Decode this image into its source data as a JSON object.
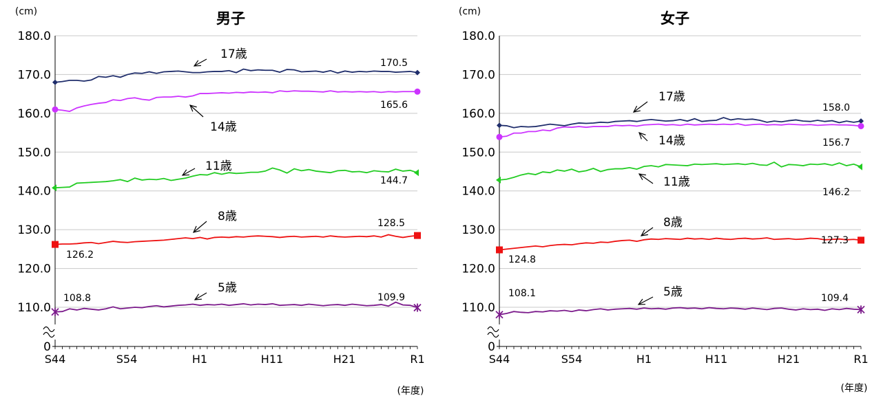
{
  "chart_data": [
    {
      "type": "line",
      "title": "男子",
      "y_unit": "(cm)",
      "x_unit": "(年度)",
      "y_ticks": [
        "180.0",
        "170.0",
        "160.0",
        "150.0",
        "140.0",
        "130.0",
        "120.0",
        "110.0",
        "0"
      ],
      "ylim": [
        105,
        180
      ],
      "y_break": true,
      "x_ticks": [
        "S44",
        "S54",
        "H1",
        "H11",
        "H21",
        "R1"
      ],
      "grid": true,
      "series": [
        {
          "name": "17歳",
          "color": "#1f2d6b",
          "marker": "diamond",
          "start_label": "",
          "end_label": "170.5",
          "values": [
            168.0,
            168.2,
            168.5,
            168.5,
            168.3,
            168.6,
            169.5,
            169.3,
            169.7,
            169.3,
            170.0,
            170.4,
            170.3,
            170.7,
            170.3,
            170.7,
            170.8,
            170.9,
            170.7,
            170.5,
            170.5,
            170.7,
            170.8,
            170.8,
            171.0,
            170.5,
            171.4,
            171.0,
            171.2,
            171.1,
            171.1,
            170.6,
            171.3,
            171.2,
            170.7,
            170.8,
            170.9,
            170.6,
            171.0,
            170.4,
            170.9,
            170.6,
            170.8,
            170.7,
            170.9,
            170.8,
            170.8,
            170.6,
            170.7,
            170.8,
            170.5
          ]
        },
        {
          "name": "14歳",
          "color": "#cc33ff",
          "marker": "circle",
          "start_label": "",
          "end_label": "165.6",
          "values": [
            161.0,
            160.8,
            160.5,
            161.4,
            161.9,
            162.3,
            162.6,
            162.8,
            163.5,
            163.3,
            163.8,
            164.0,
            163.6,
            163.4,
            164.1,
            164.2,
            164.2,
            164.4,
            164.2,
            164.5,
            165.1,
            165.1,
            165.2,
            165.3,
            165.2,
            165.4,
            165.3,
            165.5,
            165.4,
            165.5,
            165.3,
            165.8,
            165.6,
            165.8,
            165.7,
            165.7,
            165.6,
            165.5,
            165.8,
            165.5,
            165.6,
            165.5,
            165.6,
            165.5,
            165.6,
            165.4,
            165.6,
            165.5,
            165.6,
            165.6,
            165.6
          ]
        },
        {
          "name": "11歳",
          "color": "#22cc22",
          "marker": "arrow-left",
          "start_label": "",
          "end_label": "144.7",
          "values": [
            140.8,
            140.9,
            141.0,
            142.0,
            142.1,
            142.2,
            142.3,
            142.4,
            142.6,
            142.9,
            142.4,
            143.3,
            142.8,
            143.0,
            142.9,
            143.2,
            142.7,
            143.0,
            143.3,
            143.8,
            144.2,
            144.1,
            144.7,
            144.3,
            144.7,
            144.5,
            144.6,
            144.8,
            144.8,
            145.1,
            145.9,
            145.4,
            144.6,
            145.7,
            145.2,
            145.5,
            145.1,
            144.9,
            144.7,
            145.2,
            145.3,
            144.9,
            145.0,
            144.7,
            145.2,
            145.0,
            144.9,
            145.6,
            145.1,
            145.3,
            144.7
          ]
        },
        {
          "name": "8歳",
          "color": "#ee1111",
          "marker": "square",
          "start_label": "126.2",
          "end_label": "128.5",
          "values": [
            126.2,
            126.3,
            126.3,
            126.4,
            126.6,
            126.7,
            126.4,
            126.7,
            127.0,
            126.8,
            126.7,
            126.9,
            127.0,
            127.1,
            127.2,
            127.3,
            127.5,
            127.7,
            127.9,
            127.7,
            128.0,
            127.6,
            128.0,
            128.1,
            128.0,
            128.2,
            128.1,
            128.3,
            128.4,
            128.3,
            128.2,
            128.0,
            128.2,
            128.3,
            128.1,
            128.2,
            128.3,
            128.1,
            128.4,
            128.2,
            128.1,
            128.2,
            128.3,
            128.2,
            128.4,
            128.1,
            128.7,
            128.3,
            128.0,
            128.3,
            128.5
          ]
        },
        {
          "name": "5歳",
          "color": "#7b1a8b",
          "marker": "asterisk",
          "start_label": "108.8",
          "end_label": "109.9",
          "values": [
            108.8,
            108.9,
            109.6,
            109.3,
            109.7,
            109.5,
            109.3,
            109.6,
            110.1,
            109.6,
            109.8,
            110.0,
            109.9,
            110.2,
            110.4,
            110.1,
            110.3,
            110.5,
            110.6,
            110.8,
            110.5,
            110.7,
            110.6,
            110.8,
            110.5,
            110.7,
            110.9,
            110.6,
            110.8,
            110.7,
            110.9,
            110.5,
            110.6,
            110.7,
            110.5,
            110.8,
            110.6,
            110.4,
            110.6,
            110.7,
            110.5,
            110.8,
            110.6,
            110.4,
            110.5,
            110.7,
            110.3,
            111.3,
            110.6,
            110.5,
            109.9
          ]
        }
      ],
      "annotations": [
        {
          "label": "17歳",
          "arrow": "down-left"
        },
        {
          "label": "14歳",
          "arrow": "up-left"
        },
        {
          "label": "11歳",
          "arrow": "down-left"
        },
        {
          "label": "8歳",
          "arrow": "down-left"
        },
        {
          "label": "5歳",
          "arrow": "down-left"
        }
      ]
    },
    {
      "type": "line",
      "title": "女子",
      "y_unit": "(cm)",
      "x_unit": "(年度)",
      "y_ticks": [
        "180.0",
        "170.0",
        "160.0",
        "150.0",
        "140.0",
        "130.0",
        "120.0",
        "110.0",
        "0"
      ],
      "ylim": [
        105,
        180
      ],
      "y_break": true,
      "x_ticks": [
        "S44",
        "S54",
        "H1",
        "H11",
        "H21",
        "R1"
      ],
      "grid": true,
      "series": [
        {
          "name": "17歳",
          "color": "#1f2d6b",
          "marker": "diamond",
          "start_label": "",
          "end_label": "158.0",
          "values": [
            156.9,
            156.8,
            156.3,
            156.6,
            156.5,
            156.6,
            156.9,
            157.2,
            157.0,
            156.8,
            157.2,
            157.5,
            157.4,
            157.5,
            157.7,
            157.6,
            157.9,
            158.0,
            158.1,
            157.9,
            158.2,
            158.4,
            158.2,
            158.0,
            158.1,
            158.4,
            158.0,
            158.6,
            157.9,
            158.1,
            158.2,
            158.9,
            158.3,
            158.6,
            158.4,
            158.5,
            158.2,
            157.7,
            158.0,
            157.8,
            158.1,
            158.3,
            158.0,
            157.9,
            158.2,
            157.9,
            158.1,
            157.6,
            158.0,
            157.7,
            158.0
          ]
        },
        {
          "name": "14歳",
          "color": "#cc33ff",
          "marker": "circle",
          "start_label": "",
          "end_label": "156.7",
          "values": [
            153.9,
            154.1,
            154.9,
            154.9,
            155.3,
            155.3,
            155.7,
            155.5,
            156.2,
            156.5,
            156.4,
            156.6,
            156.4,
            156.6,
            156.6,
            156.6,
            156.9,
            156.8,
            156.9,
            156.7,
            157.0,
            157.1,
            157.2,
            157.0,
            157.1,
            156.9,
            157.2,
            157.0,
            157.1,
            157.2,
            157.1,
            157.2,
            157.1,
            157.3,
            156.9,
            157.1,
            157.2,
            157.0,
            157.1,
            157.0,
            157.2,
            157.1,
            157.0,
            157.1,
            156.9,
            157.0,
            157.1,
            157.0,
            157.0,
            156.9,
            156.7
          ]
        },
        {
          "name": "11歳",
          "color": "#22cc22",
          "marker": "arrow-left",
          "start_label": "",
          "end_label": "146.2",
          "values": [
            142.8,
            143.0,
            143.5,
            144.1,
            144.5,
            144.2,
            144.9,
            144.7,
            145.4,
            145.1,
            145.6,
            144.9,
            145.2,
            145.8,
            145.0,
            145.5,
            145.7,
            145.7,
            146.0,
            145.6,
            146.3,
            146.5,
            146.2,
            146.8,
            146.7,
            146.6,
            146.5,
            146.9,
            146.8,
            146.9,
            147.0,
            146.8,
            146.9,
            147.0,
            146.8,
            147.1,
            146.7,
            146.6,
            147.4,
            146.2,
            146.8,
            146.7,
            146.5,
            146.9,
            146.8,
            147.0,
            146.6,
            147.2,
            146.5,
            146.9,
            146.2
          ]
        },
        {
          "name": "8歳",
          "color": "#ee1111",
          "marker": "square",
          "start_label": "124.8",
          "end_label": "127.3",
          "values": [
            124.8,
            125.0,
            125.2,
            125.4,
            125.6,
            125.8,
            125.6,
            125.9,
            126.1,
            126.2,
            126.1,
            126.4,
            126.6,
            126.5,
            126.8,
            126.7,
            127.0,
            127.2,
            127.3,
            127.0,
            127.4,
            127.6,
            127.5,
            127.7,
            127.6,
            127.5,
            127.8,
            127.6,
            127.7,
            127.5,
            127.8,
            127.6,
            127.5,
            127.7,
            127.8,
            127.6,
            127.7,
            127.9,
            127.5,
            127.6,
            127.7,
            127.5,
            127.6,
            127.8,
            127.7,
            127.4,
            127.5,
            127.6,
            127.4,
            127.5,
            127.3
          ]
        },
        {
          "name": "5歳",
          "color": "#7b1a8b",
          "marker": "asterisk",
          "start_label": "108.1",
          "end_label": "109.4",
          "values": [
            108.1,
            108.4,
            108.9,
            108.7,
            108.6,
            108.9,
            108.8,
            109.1,
            109.0,
            109.2,
            108.9,
            109.3,
            109.1,
            109.4,
            109.6,
            109.3,
            109.5,
            109.6,
            109.7,
            109.5,
            109.8,
            109.6,
            109.7,
            109.5,
            109.8,
            109.9,
            109.7,
            109.8,
            109.6,
            109.9,
            109.7,
            109.6,
            109.8,
            109.7,
            109.5,
            109.8,
            109.6,
            109.4,
            109.7,
            109.8,
            109.5,
            109.3,
            109.6,
            109.4,
            109.5,
            109.2,
            109.6,
            109.4,
            109.7,
            109.5,
            109.4
          ]
        }
      ],
      "annotations": [
        {
          "label": "17歳",
          "arrow": "down-left"
        },
        {
          "label": "14歳",
          "arrow": "up-left"
        },
        {
          "label": "11歳",
          "arrow": "up-left"
        },
        {
          "label": "8歳",
          "arrow": "down-left"
        },
        {
          "label": "5歳",
          "arrow": "down-left"
        }
      ]
    }
  ]
}
